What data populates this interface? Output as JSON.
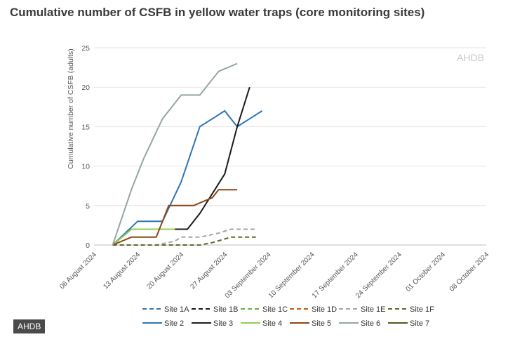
{
  "header": {
    "title": "Cumulative number of CSFB in yellow water traps (core monitoring sites)"
  },
  "footer": {
    "badge": "AHDB"
  },
  "chart_data": {
    "type": "line",
    "title": "Cumulative number of CSFB in yellow water traps (core monitoring sites)",
    "ylabel": "Cumulative number of CSFB (adults)",
    "xlabel": "",
    "watermark": "AHDB",
    "ylim": [
      0,
      25
    ],
    "yticks": [
      0,
      5,
      10,
      15,
      20,
      25
    ],
    "xlim": [
      "2024-08-06",
      "2024-10-08"
    ],
    "xticks": [
      "06 August 2024",
      "13 August 2024",
      "20 August 2024",
      "27 August 2024",
      "03 September 2024",
      "10 September 2024",
      "17 September 2024",
      "24 September 2024",
      "01 October 2024",
      "08 October 2024"
    ],
    "xtick_dates": [
      "2024-08-06",
      "2024-08-13",
      "2024-08-20",
      "2024-08-27",
      "2024-09-03",
      "2024-09-10",
      "2024-09-17",
      "2024-09-24",
      "2024-10-01",
      "2024-10-08"
    ],
    "grid": true,
    "legend_position": "bottom",
    "series": [
      {
        "name": "Site 1A",
        "color": "#2e75b6",
        "dash": true,
        "points": []
      },
      {
        "name": "Site 1B",
        "color": "#1a1a1a",
        "dash": true,
        "points": []
      },
      {
        "name": "Site 1C",
        "color": "#70ad47",
        "dash": true,
        "points": []
      },
      {
        "name": "Site 1D",
        "color": "#c55a11",
        "dash": true,
        "points": []
      },
      {
        "name": "Site 1E",
        "color": "#a5a5a5",
        "dash": true,
        "points": [
          [
            "2024-08-09",
            0
          ],
          [
            "2024-08-16",
            0
          ],
          [
            "2024-08-19",
            0.5
          ],
          [
            "2024-08-20",
            1
          ],
          [
            "2024-08-23",
            1
          ],
          [
            "2024-08-26",
            1.5
          ],
          [
            "2024-08-28",
            2
          ],
          [
            "2024-09-01",
            2
          ]
        ]
      },
      {
        "name": "Site 1F",
        "color": "#5a6b2e",
        "dash": true,
        "points": [
          [
            "2024-08-09",
            0
          ],
          [
            "2024-08-23",
            0
          ],
          [
            "2024-08-25",
            0.3
          ],
          [
            "2024-08-28",
            1
          ],
          [
            "2024-09-01",
            1
          ]
        ]
      },
      {
        "name": "Site 2",
        "color": "#2e75b6",
        "dash": false,
        "points": [
          [
            "2024-08-09",
            0
          ],
          [
            "2024-08-13",
            3
          ],
          [
            "2024-08-17",
            3
          ],
          [
            "2024-08-20",
            8
          ],
          [
            "2024-08-23",
            15
          ],
          [
            "2024-08-25",
            16
          ],
          [
            "2024-08-27",
            17
          ],
          [
            "2024-08-28",
            16
          ],
          [
            "2024-08-29",
            15
          ],
          [
            "2024-08-31",
            16
          ],
          [
            "2024-09-02",
            17
          ]
        ]
      },
      {
        "name": "Site 3",
        "color": "#1a1a1a",
        "dash": false,
        "points": [
          [
            "2024-08-09",
            0
          ],
          [
            "2024-08-12",
            2
          ],
          [
            "2024-08-20",
            2
          ],
          [
            "2024-08-21",
            2
          ],
          [
            "2024-08-23",
            4
          ],
          [
            "2024-08-27",
            9
          ],
          [
            "2024-08-29",
            15
          ],
          [
            "2024-08-31",
            20
          ]
        ]
      },
      {
        "name": "Site 4",
        "color": "#92d050",
        "dash": false,
        "points": [
          [
            "2024-08-09",
            0
          ],
          [
            "2024-08-12",
            2
          ],
          [
            "2024-08-19",
            2
          ]
        ]
      },
      {
        "name": "Site 5",
        "color": "#8b4513",
        "dash": false,
        "points": [
          [
            "2024-08-09",
            0
          ],
          [
            "2024-08-12",
            1
          ],
          [
            "2024-08-16",
            1
          ],
          [
            "2024-08-18",
            5
          ],
          [
            "2024-08-22",
            5
          ],
          [
            "2024-08-25",
            6
          ],
          [
            "2024-08-26",
            7
          ],
          [
            "2024-08-29",
            7
          ]
        ]
      },
      {
        "name": "Site 6",
        "color": "#95a5a6",
        "dash": false,
        "points": [
          [
            "2024-08-09",
            0
          ],
          [
            "2024-08-12",
            7
          ],
          [
            "2024-08-14",
            11
          ],
          [
            "2024-08-17",
            16
          ],
          [
            "2024-08-20",
            19
          ],
          [
            "2024-08-23",
            19
          ],
          [
            "2024-08-26",
            22
          ],
          [
            "2024-08-29",
            23
          ]
        ]
      },
      {
        "name": "Site 7",
        "color": "#4d5b1e",
        "dash": false,
        "points": []
      }
    ]
  }
}
